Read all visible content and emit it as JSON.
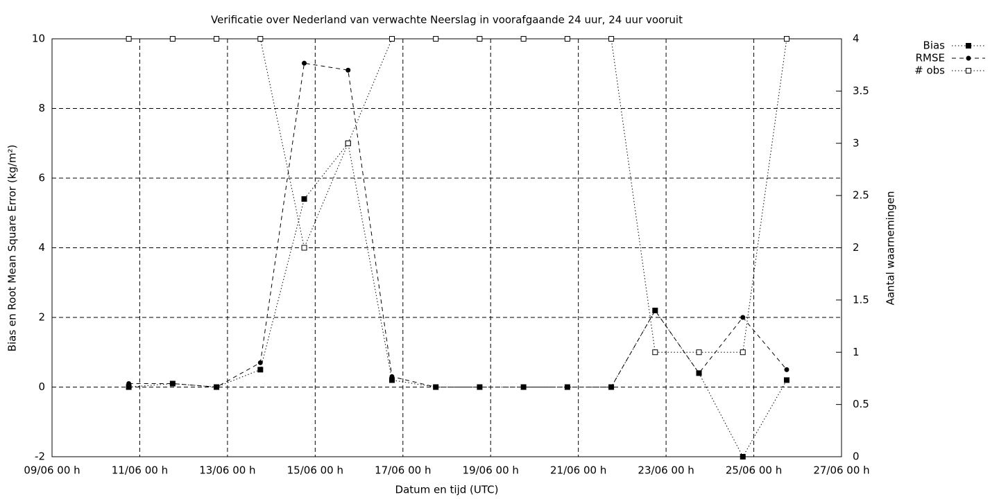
{
  "chart_data": {
    "type": "line",
    "title": "Verificatie over Nederland van verwachte Neerslag in voorafgaande 24 uur, 24 uur vooruit",
    "x_label": "Datum en tijd (UTC)",
    "y_label": "Bias en Root Mean Square Error (kg/m²)",
    "y2_label": "Aantal waarnemingen",
    "x": [
      "10/06 18 h",
      "11/06 18 h",
      "12/06 18 h",
      "13/06 18 h",
      "14/06 18 h",
      "15/06 18 h",
      "16/06 18 h",
      "17/06 18 h",
      "18/06 18 h",
      "19/06 18 h",
      "20/06 18 h",
      "21/06 18 h",
      "22/06 18 h",
      "23/06 18 h",
      "24/06 18 h",
      "25/06 18 h"
    ],
    "series": [
      {
        "name": "Bias",
        "color": "#000000",
        "dash": "dotted",
        "marker": "filled-square",
        "values": [
          0,
          0.1,
          0,
          0.5,
          5.4,
          7.0,
          0.2,
          0,
          0,
          0,
          0,
          0,
          2.2,
          0.4,
          -2,
          0.2
        ]
      },
      {
        "name": "RMSE",
        "color": "#000000",
        "dash": "dashed",
        "marker": "circle",
        "values": [
          0.1,
          0.1,
          0,
          0.7,
          9.3,
          9.1,
          0.3,
          0,
          0,
          0,
          0,
          0,
          2.2,
          0.4,
          2.0,
          0.5
        ]
      },
      {
        "name": "# obs",
        "color": "#000000",
        "dash": "dotted",
        "marker": "open-square",
        "axis": "y2",
        "values": [
          4,
          4,
          4,
          4,
          2,
          3,
          4,
          4,
          4,
          4,
          4,
          4,
          1,
          1,
          1,
          4
        ]
      }
    ],
    "xlim": [
      "09/06 00 h",
      "27/06 00 h"
    ],
    "xticks": [
      "09/06 00 h",
      "11/06 00 h",
      "13/06 00 h",
      "15/06 00 h",
      "17/06 00 h",
      "19/06 00 h",
      "21/06 00 h",
      "23/06 00 h",
      "25/06 00 h",
      "27/06 00 h"
    ],
    "ylim": [
      -2,
      10
    ],
    "yticks": [
      -2,
      0,
      2,
      4,
      6,
      8,
      10
    ],
    "y2lim": [
      0,
      4
    ],
    "y2ticks": [
      0,
      0.5,
      1,
      1.5,
      2,
      2.5,
      3,
      3.5,
      4
    ],
    "grid": true,
    "legend": "top-right-outside"
  }
}
